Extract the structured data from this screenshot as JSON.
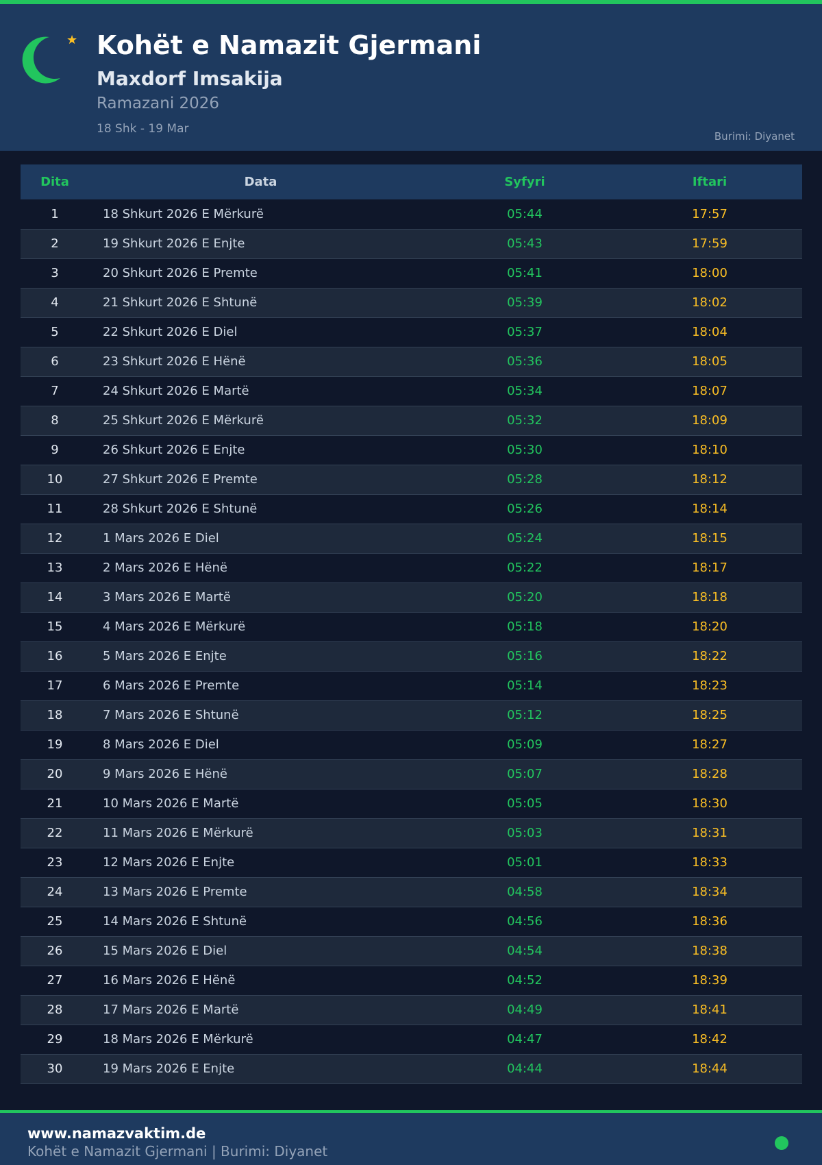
{
  "header": {
    "title": "Kohët e Namazit Gjermani",
    "subtitle": "Maxdorf Imsakija",
    "ramadan": "Ramazani 2026",
    "range": "18 Shk - 19 Mar",
    "source": "Burimi: Diyanet"
  },
  "colors": {
    "accent": "#22c55e",
    "iftar": "#fbbf24",
    "header_bg": "#1e3a5f",
    "page_bg": "#0f172a"
  },
  "table": {
    "headers": [
      "Dita",
      "Data",
      "Syfyri",
      "Iftari"
    ],
    "rows": [
      [
        "1",
        "18 Shkurt 2026 E Mërkurë",
        "05:44",
        "17:57"
      ],
      [
        "2",
        "19 Shkurt 2026 E Enjte",
        "05:43",
        "17:59"
      ],
      [
        "3",
        "20 Shkurt 2026 E Premte",
        "05:41",
        "18:00"
      ],
      [
        "4",
        "21 Shkurt 2026 E Shtunë",
        "05:39",
        "18:02"
      ],
      [
        "5",
        "22 Shkurt 2026 E Diel",
        "05:37",
        "18:04"
      ],
      [
        "6",
        "23 Shkurt 2026 E Hënë",
        "05:36",
        "18:05"
      ],
      [
        "7",
        "24 Shkurt 2026 E Martë",
        "05:34",
        "18:07"
      ],
      [
        "8",
        "25 Shkurt 2026 E Mërkurë",
        "05:32",
        "18:09"
      ],
      [
        "9",
        "26 Shkurt 2026 E Enjte",
        "05:30",
        "18:10"
      ],
      [
        "10",
        "27 Shkurt 2026 E Premte",
        "05:28",
        "18:12"
      ],
      [
        "11",
        "28 Shkurt 2026 E Shtunë",
        "05:26",
        "18:14"
      ],
      [
        "12",
        "1 Mars 2026 E Diel",
        "05:24",
        "18:15"
      ],
      [
        "13",
        "2 Mars 2026 E Hënë",
        "05:22",
        "18:17"
      ],
      [
        "14",
        "3 Mars 2026 E Martë",
        "05:20",
        "18:18"
      ],
      [
        "15",
        "4 Mars 2026 E Mërkurë",
        "05:18",
        "18:20"
      ],
      [
        "16",
        "5 Mars 2026 E Enjte",
        "05:16",
        "18:22"
      ],
      [
        "17",
        "6 Mars 2026 E Premte",
        "05:14",
        "18:23"
      ],
      [
        "18",
        "7 Mars 2026 E Shtunë",
        "05:12",
        "18:25"
      ],
      [
        "19",
        "8 Mars 2026 E Diel",
        "05:09",
        "18:27"
      ],
      [
        "20",
        "9 Mars 2026 E Hënë",
        "05:07",
        "18:28"
      ],
      [
        "21",
        "10 Mars 2026 E Martë",
        "05:05",
        "18:30"
      ],
      [
        "22",
        "11 Mars 2026 E Mërkurë",
        "05:03",
        "18:31"
      ],
      [
        "23",
        "12 Mars 2026 E Enjte",
        "05:01",
        "18:33"
      ],
      [
        "24",
        "13 Mars 2026 E Premte",
        "04:58",
        "18:34"
      ],
      [
        "25",
        "14 Mars 2026 E Shtunë",
        "04:56",
        "18:36"
      ],
      [
        "26",
        "15 Mars 2026 E Diel",
        "04:54",
        "18:38"
      ],
      [
        "27",
        "16 Mars 2026 E Hënë",
        "04:52",
        "18:39"
      ],
      [
        "28",
        "17 Mars 2026 E Martë",
        "04:49",
        "18:41"
      ],
      [
        "29",
        "18 Mars 2026 E Mërkurë",
        "04:47",
        "18:42"
      ],
      [
        "30",
        "19 Mars 2026 E Enjte",
        "04:44",
        "18:44"
      ]
    ]
  },
  "footer": {
    "site": "www.namazvaktim.de",
    "text": "Kohët e Namazit Gjermani | Burimi: Diyanet"
  }
}
